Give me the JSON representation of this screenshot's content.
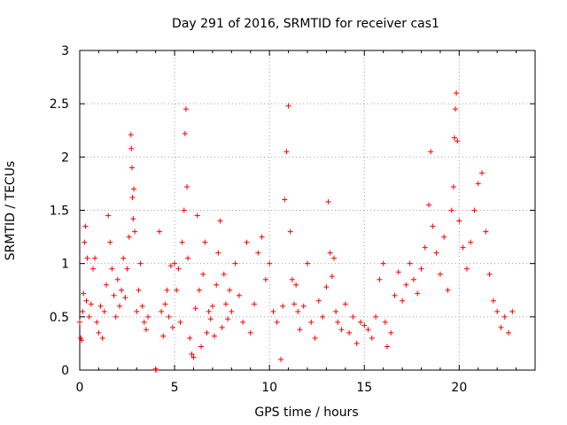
{
  "chart_data": {
    "type": "scatter",
    "title": "Day 291 of 2016, SRMTID for receiver cas1",
    "xlabel": "GPS time / hours",
    "ylabel": "SRMTID / TECUs",
    "xlim": [
      0,
      24
    ],
    "ylim": [
      0,
      3
    ],
    "x_ticks": [
      0,
      5,
      10,
      15,
      20
    ],
    "y_ticks": [
      0,
      0.5,
      1,
      1.5,
      2,
      2.5,
      3
    ],
    "x_tick_labels": [
      "0",
      "5",
      "10",
      "15",
      "20"
    ],
    "y_tick_labels": [
      "0",
      "0.5",
      "1",
      "1.5",
      "2",
      "2.5",
      "3"
    ],
    "grid": true,
    "marker": "plus",
    "color": "#ff0000",
    "series": [
      {
        "name": "SRMTID",
        "points": [
          [
            0.0,
            0.45
          ],
          [
            0.05,
            0.3
          ],
          [
            0.1,
            0.28
          ],
          [
            0.15,
            0.55
          ],
          [
            0.2,
            0.72
          ],
          [
            0.25,
            1.2
          ],
          [
            0.3,
            1.35
          ],
          [
            0.35,
            0.65
          ],
          [
            0.4,
            1.05
          ],
          [
            0.5,
            0.5
          ],
          [
            0.6,
            0.62
          ],
          [
            0.7,
            0.95
          ],
          [
            0.8,
            1.05
          ],
          [
            0.9,
            0.45
          ],
          [
            1.0,
            0.35
          ],
          [
            1.1,
            0.6
          ],
          [
            1.2,
            0.3
          ],
          [
            1.3,
            0.55
          ],
          [
            1.4,
            0.8
          ],
          [
            1.5,
            1.45
          ],
          [
            1.6,
            1.2
          ],
          [
            1.7,
            0.95
          ],
          [
            1.8,
            0.7
          ],
          [
            1.9,
            0.5
          ],
          [
            2.0,
            0.85
          ],
          [
            2.1,
            0.6
          ],
          [
            2.2,
            0.75
          ],
          [
            2.3,
            1.05
          ],
          [
            2.4,
            0.68
          ],
          [
            2.5,
            0.95
          ],
          [
            2.6,
            1.25
          ],
          [
            2.7,
            2.21
          ],
          [
            2.72,
            2.08
          ],
          [
            2.75,
            1.9
          ],
          [
            2.78,
            1.62
          ],
          [
            2.82,
            1.42
          ],
          [
            2.85,
            1.7
          ],
          [
            2.9,
            1.3
          ],
          [
            3.0,
            0.55
          ],
          [
            3.1,
            0.75
          ],
          [
            3.2,
            1.0
          ],
          [
            3.3,
            0.6
          ],
          [
            3.4,
            0.45
          ],
          [
            3.5,
            0.38
          ],
          [
            3.6,
            0.5
          ],
          [
            4.0,
            0.01
          ],
          [
            4.02,
            0.0
          ],
          [
            4.2,
            1.3
          ],
          [
            4.3,
            0.55
          ],
          [
            4.4,
            0.32
          ],
          [
            4.5,
            0.62
          ],
          [
            4.6,
            0.75
          ],
          [
            4.7,
            0.5
          ],
          [
            4.8,
            0.98
          ],
          [
            4.9,
            0.4
          ],
          [
            5.0,
            1.0
          ],
          [
            5.1,
            0.75
          ],
          [
            5.2,
            0.95
          ],
          [
            5.3,
            0.45
          ],
          [
            5.4,
            1.2
          ],
          [
            5.5,
            1.5
          ],
          [
            5.55,
            2.22
          ],
          [
            5.6,
            2.45
          ],
          [
            5.65,
            1.72
          ],
          [
            5.7,
            1.05
          ],
          [
            5.8,
            0.3
          ],
          [
            5.9,
            0.15
          ],
          [
            6.0,
            0.12
          ],
          [
            6.1,
            0.58
          ],
          [
            6.2,
            1.45
          ],
          [
            6.3,
            0.75
          ],
          [
            6.4,
            0.22
          ],
          [
            6.5,
            0.9
          ],
          [
            6.6,
            1.2
          ],
          [
            6.7,
            0.35
          ],
          [
            6.8,
            0.55
          ],
          [
            6.9,
            0.48
          ],
          [
            7.0,
            0.6
          ],
          [
            7.1,
            0.32
          ],
          [
            7.2,
            0.8
          ],
          [
            7.3,
            1.1
          ],
          [
            7.4,
            1.4
          ],
          [
            7.5,
            0.4
          ],
          [
            7.6,
            0.9
          ],
          [
            7.7,
            0.62
          ],
          [
            7.8,
            0.48
          ],
          [
            7.9,
            0.75
          ],
          [
            8.0,
            0.55
          ],
          [
            8.2,
            1.0
          ],
          [
            8.4,
            0.7
          ],
          [
            8.6,
            0.45
          ],
          [
            8.8,
            1.2
          ],
          [
            9.0,
            0.35
          ],
          [
            9.2,
            0.62
          ],
          [
            9.4,
            1.1
          ],
          [
            9.6,
            1.25
          ],
          [
            9.8,
            0.85
          ],
          [
            10.0,
            1.0
          ],
          [
            10.2,
            0.55
          ],
          [
            10.4,
            0.45
          ],
          [
            10.6,
            0.1
          ],
          [
            10.7,
            0.6
          ],
          [
            10.8,
            1.6
          ],
          [
            10.9,
            2.05
          ],
          [
            11.0,
            2.48
          ],
          [
            11.1,
            1.3
          ],
          [
            11.2,
            0.85
          ],
          [
            11.3,
            0.62
          ],
          [
            11.4,
            0.8
          ],
          [
            11.5,
            0.55
          ],
          [
            11.6,
            0.38
          ],
          [
            11.8,
            0.6
          ],
          [
            12.0,
            1.0
          ],
          [
            12.2,
            0.45
          ],
          [
            12.4,
            0.3
          ],
          [
            12.6,
            0.65
          ],
          [
            12.8,
            0.5
          ],
          [
            13.0,
            0.78
          ],
          [
            13.1,
            1.58
          ],
          [
            13.2,
            1.1
          ],
          [
            13.3,
            0.88
          ],
          [
            13.4,
            1.05
          ],
          [
            13.5,
            0.55
          ],
          [
            13.6,
            0.45
          ],
          [
            13.8,
            0.38
          ],
          [
            14.0,
            0.62
          ],
          [
            14.2,
            0.35
          ],
          [
            14.4,
            0.5
          ],
          [
            14.6,
            0.25
          ],
          [
            14.8,
            0.45
          ],
          [
            15.0,
            0.42
          ],
          [
            15.2,
            0.38
          ],
          [
            15.4,
            0.3
          ],
          [
            15.6,
            0.5
          ],
          [
            15.8,
            0.85
          ],
          [
            16.0,
            1.0
          ],
          [
            16.1,
            0.45
          ],
          [
            16.2,
            0.22
          ],
          [
            16.4,
            0.35
          ],
          [
            16.6,
            0.7
          ],
          [
            16.8,
            0.92
          ],
          [
            17.0,
            0.65
          ],
          [
            17.2,
            0.8
          ],
          [
            17.4,
            1.0
          ],
          [
            17.6,
            0.85
          ],
          [
            17.8,
            0.72
          ],
          [
            18.0,
            0.95
          ],
          [
            18.2,
            1.15
          ],
          [
            18.4,
            1.55
          ],
          [
            18.5,
            2.05
          ],
          [
            18.6,
            1.35
          ],
          [
            18.8,
            1.1
          ],
          [
            19.0,
            0.9
          ],
          [
            19.2,
            1.25
          ],
          [
            19.4,
            0.75
          ],
          [
            19.6,
            1.5
          ],
          [
            19.7,
            1.72
          ],
          [
            19.75,
            2.18
          ],
          [
            19.8,
            2.45
          ],
          [
            19.85,
            2.6
          ],
          [
            19.9,
            2.15
          ],
          [
            20.0,
            1.4
          ],
          [
            20.2,
            1.15
          ],
          [
            20.4,
            0.95
          ],
          [
            20.6,
            1.2
          ],
          [
            20.8,
            1.5
          ],
          [
            21.0,
            1.75
          ],
          [
            21.2,
            1.85
          ],
          [
            21.4,
            1.3
          ],
          [
            21.6,
            0.9
          ],
          [
            21.8,
            0.65
          ],
          [
            22.0,
            0.55
          ],
          [
            22.2,
            0.4
          ],
          [
            22.4,
            0.5
          ],
          [
            22.6,
            0.35
          ],
          [
            22.8,
            0.55
          ]
        ]
      }
    ]
  }
}
